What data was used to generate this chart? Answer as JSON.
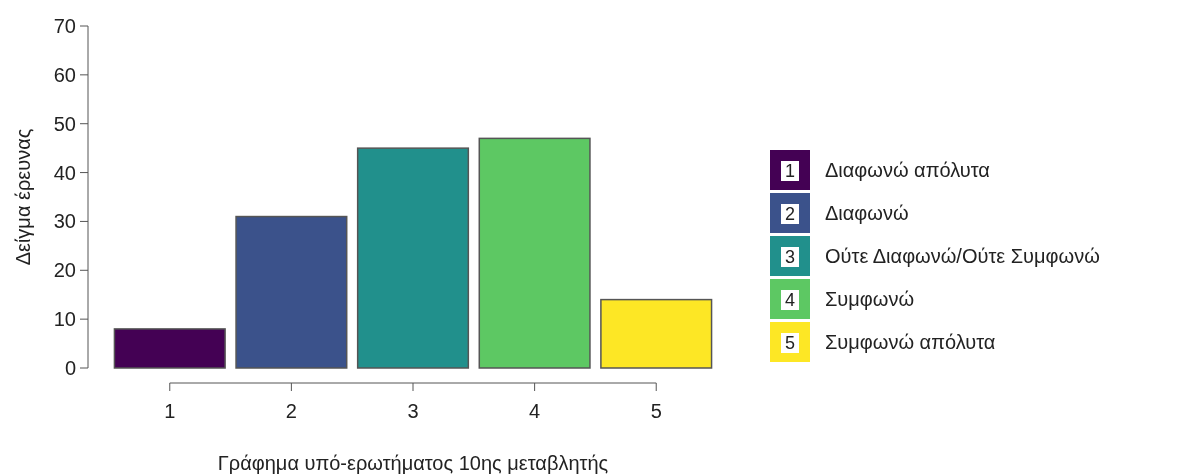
{
  "chart_data": {
    "type": "bar",
    "xlabel": "Γράφημα υπό-ερωτήματος 10ης μεταβλητής",
    "ylabel": "Δείγμα έρευνας",
    "categories": [
      "1",
      "2",
      "3",
      "4",
      "5"
    ],
    "stacked": true,
    "ylim": [
      0,
      70
    ],
    "yticks": [
      0,
      10,
      20,
      30,
      40,
      50,
      60,
      70
    ],
    "legend": "right",
    "series": [
      {
        "name": "Διαφωνώ απόλυτα",
        "color": "#440154",
        "values": [
          8,
          null,
          null,
          null,
          null
        ]
      },
      {
        "name": "Διαφωνώ",
        "color": "#3b528b",
        "values": [
          null,
          31,
          null,
          null,
          null
        ]
      },
      {
        "name": "Ούτε Διαφωνώ/Ούτε Συμφωνώ",
        "color": "#21908c",
        "values": [
          null,
          null,
          45,
          null,
          null
        ]
      },
      {
        "name": "Συμφωνώ",
        "color": "#5dc863",
        "values": [
          null,
          null,
          null,
          47,
          null
        ]
      },
      {
        "name": "Συμφωνώ απόλυτα",
        "color": "#fde725",
        "values": [
          null,
          null,
          null,
          null,
          14
        ]
      }
    ]
  }
}
